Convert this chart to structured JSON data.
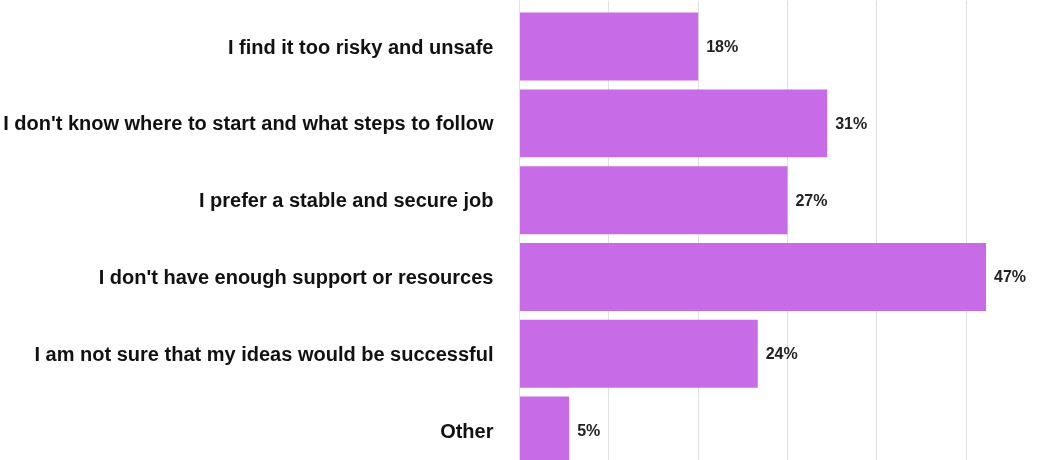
{
  "chart_data": {
    "type": "bar",
    "orientation": "horizontal",
    "categories": [
      "I find it too risky and unsafe",
      "I don't know where to start and what steps to follow",
      "I prefer a stable and secure job",
      "I don't have enough support or resources",
      "I am not sure that my ideas would be successful",
      "Other"
    ],
    "values": [
      18,
      31,
      27,
      47,
      24,
      5
    ],
    "value_labels": [
      "18%",
      "31%",
      "27%",
      "47%",
      "24%",
      "5%"
    ],
    "color": "#c86be6",
    "xticks": [
      {
        "value": 0,
        "label": null
      },
      {
        "value": 9,
        "label": null
      },
      {
        "value": 18,
        "label": null
      },
      {
        "value": 27,
        "label": null
      },
      {
        "value": 36,
        "label": null
      },
      {
        "value": 45,
        "label": null
      }
    ],
    "grid": "x"
  }
}
